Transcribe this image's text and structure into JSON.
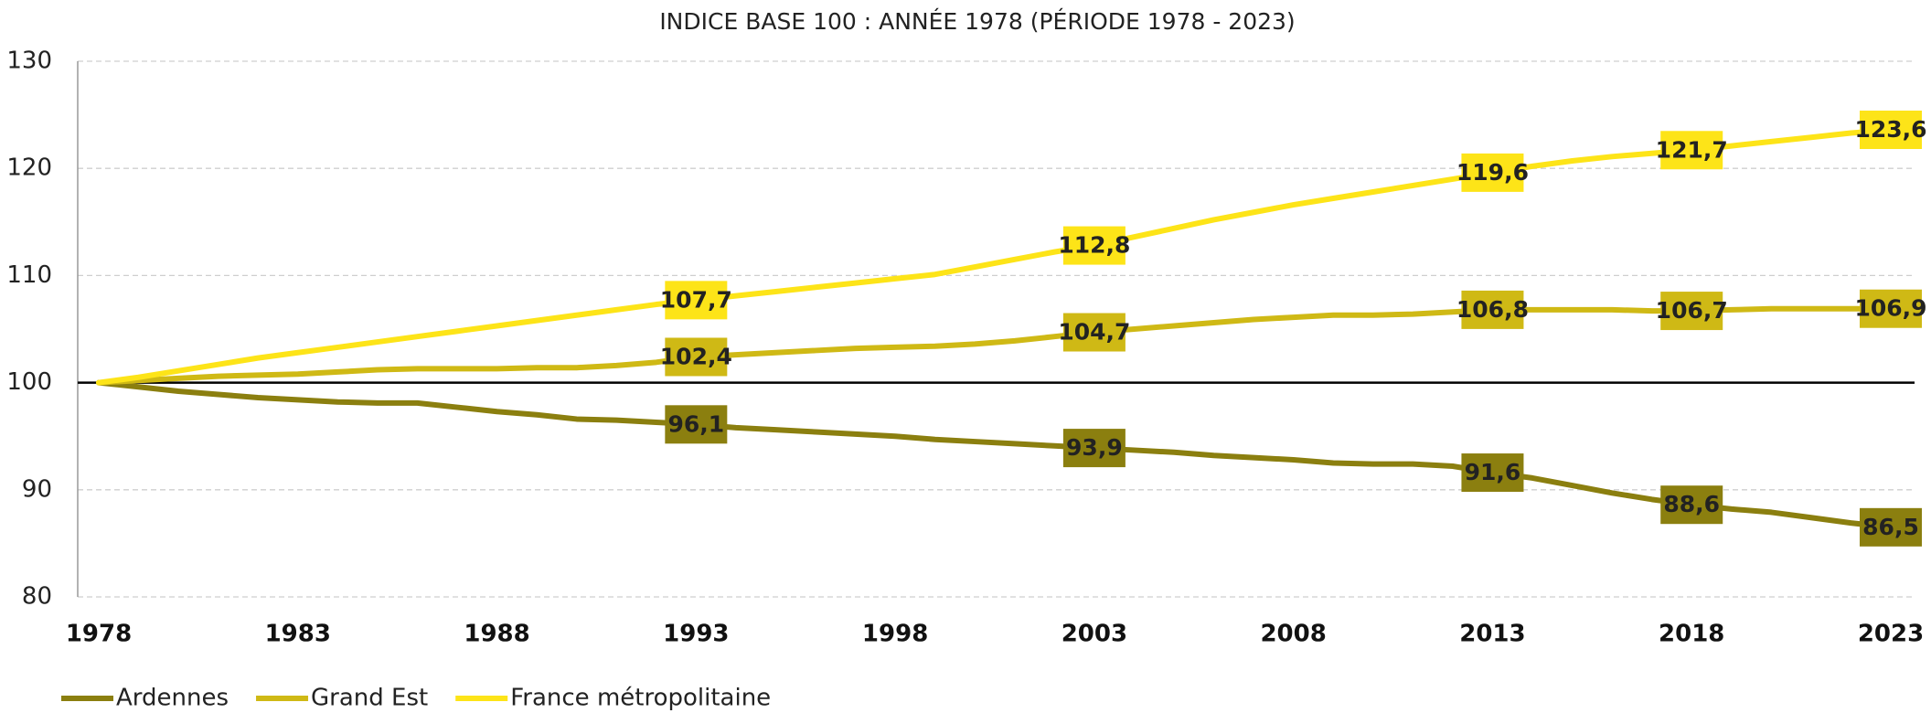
{
  "chart_data": {
    "type": "line",
    "title": "INDICE BASE 100 : ANNÉE 1978 (PÉRIODE 1978 - 2023)",
    "x": [
      1978,
      1979,
      1980,
      1981,
      1982,
      1983,
      1984,
      1985,
      1986,
      1987,
      1988,
      1989,
      1990,
      1991,
      1992,
      1993,
      1994,
      1995,
      1996,
      1997,
      1998,
      1999,
      2000,
      2001,
      2002,
      2003,
      2004,
      2005,
      2006,
      2007,
      2008,
      2009,
      2010,
      2011,
      2012,
      2013,
      2014,
      2015,
      2016,
      2017,
      2018,
      2019,
      2020,
      2021,
      2022,
      2023
    ],
    "xlim": [
      1978,
      2023
    ],
    "xticks": [
      1978,
      1983,
      1988,
      1993,
      1998,
      2003,
      2008,
      2013,
      2018,
      2023
    ],
    "ylim": [
      80,
      130
    ],
    "yticks": [
      80,
      90,
      100,
      110,
      120,
      130
    ],
    "grid": true,
    "reference_line": 100,
    "legend": "bottom-left",
    "series": [
      {
        "name": "Ardennes",
        "color": "#8b7f0f",
        "label_text_color": "#ffffff",
        "values": [
          100,
          99.6,
          99.2,
          98.9,
          98.6,
          98.4,
          98.2,
          98.1,
          98.1,
          97.7,
          97.3,
          97.0,
          96.6,
          96.5,
          96.3,
          96.1,
          95.8,
          95.6,
          95.4,
          95.2,
          95.0,
          94.7,
          94.5,
          94.3,
          94.1,
          93.9,
          93.7,
          93.5,
          93.2,
          93.0,
          92.8,
          92.5,
          92.4,
          92.4,
          92.2,
          91.6,
          91.1,
          90.4,
          89.7,
          89.1,
          88.6,
          88.2,
          87.9,
          87.4,
          86.9,
          86.5
        ],
        "value_labels": [
          null,
          null,
          null,
          null,
          null,
          null,
          null,
          null,
          null,
          null,
          null,
          null,
          null,
          null,
          null,
          "96,1",
          null,
          null,
          null,
          null,
          null,
          null,
          null,
          null,
          null,
          "93,9",
          null,
          null,
          null,
          null,
          null,
          null,
          null,
          null,
          null,
          "91,6",
          null,
          null,
          null,
          null,
          "88,6",
          null,
          null,
          null,
          null,
          "86,5"
        ]
      },
      {
        "name": "Grand Est",
        "color": "#cfb915",
        "label_text_color": "#ffffff",
        "values": [
          100,
          100.2,
          100.4,
          100.6,
          100.7,
          100.8,
          101.0,
          101.2,
          101.3,
          101.3,
          101.3,
          101.4,
          101.4,
          101.6,
          101.9,
          102.4,
          102.6,
          102.8,
          103.0,
          103.2,
          103.3,
          103.4,
          103.6,
          103.9,
          104.3,
          104.7,
          105.0,
          105.3,
          105.6,
          105.9,
          106.1,
          106.3,
          106.3,
          106.4,
          106.6,
          106.8,
          106.8,
          106.8,
          106.8,
          106.7,
          106.7,
          106.8,
          106.9,
          106.9,
          106.9,
          106.9
        ],
        "value_labels": [
          null,
          null,
          null,
          null,
          null,
          null,
          null,
          null,
          null,
          null,
          null,
          null,
          null,
          null,
          null,
          "102,4",
          null,
          null,
          null,
          null,
          null,
          null,
          null,
          null,
          null,
          "104,7",
          null,
          null,
          null,
          null,
          null,
          null,
          null,
          null,
          null,
          "106,8",
          null,
          null,
          null,
          null,
          "106,7",
          null,
          null,
          null,
          null,
          "106,9"
        ]
      },
      {
        "name": "France métropolitaine",
        "color": "#fde418",
        "label_text_color": "#000000",
        "values": [
          100,
          100.5,
          101.1,
          101.7,
          102.3,
          102.8,
          103.3,
          103.8,
          104.3,
          104.8,
          105.3,
          105.8,
          106.3,
          106.8,
          107.3,
          107.7,
          108.1,
          108.5,
          108.9,
          109.3,
          109.7,
          110.1,
          110.8,
          111.5,
          112.2,
          112.8,
          113.6,
          114.4,
          115.2,
          115.9,
          116.6,
          117.2,
          117.8,
          118.4,
          119.0,
          119.6,
          120.2,
          120.7,
          121.1,
          121.4,
          121.7,
          122.1,
          122.5,
          122.9,
          123.3,
          123.6
        ],
        "value_labels": [
          null,
          null,
          null,
          null,
          null,
          null,
          null,
          null,
          null,
          null,
          null,
          null,
          null,
          null,
          null,
          "107,7",
          null,
          null,
          null,
          null,
          null,
          null,
          null,
          null,
          null,
          "112,8",
          null,
          null,
          null,
          null,
          null,
          null,
          null,
          null,
          null,
          "119,6",
          null,
          null,
          null,
          null,
          "121,7",
          null,
          null,
          null,
          null,
          "123,6"
        ]
      }
    ]
  }
}
